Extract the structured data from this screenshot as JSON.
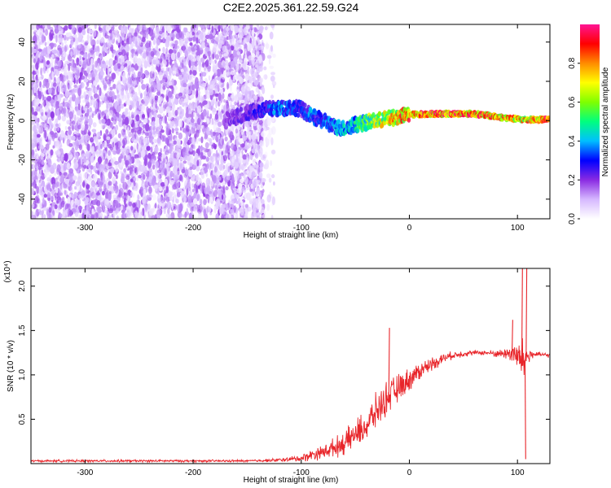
{
  "title": "C2E2.2025.361.22.59.G24",
  "colors": {
    "line": "#e8252a",
    "spec_base": "#7a1cf0",
    "frame": "#000000"
  },
  "chart_data": [
    {
      "type": "heatmap",
      "xlabel": "Height of straight line (km)",
      "ylabel": "Frequency (Hz)",
      "xlim": [
        -350,
        130
      ],
      "ylim": [
        -50,
        49
      ],
      "xticks": [
        -300,
        -200,
        -100,
        0,
        100
      ],
      "yticks": [
        -40,
        -20,
        0,
        20,
        40
      ],
      "grid": false,
      "colorbar": {
        "label": "Normalized spectral amplitude",
        "range": [
          0.0,
          1.0
        ],
        "ticks": [
          0.0,
          0.2,
          0.4,
          0.6,
          0.8
        ],
        "tick_labels": [
          "0.0",
          "0.2",
          "0.4",
          "0.6",
          "0.8"
        ],
        "colormap": [
          "#ffffff",
          "#d6b8ff",
          "#8a2be2",
          "#0000ff",
          "#00bfff",
          "#00ff7f",
          "#7fff00",
          "#ffff00",
          "#ff8c00",
          "#ff0000",
          "#ff1493"
        ]
      },
      "regions": [
        {
          "description": "noise",
          "x_range": [
            -350,
            -135
          ],
          "freq_range": [
            -50,
            49
          ],
          "amplitude": 0.1
        },
        {
          "description": "noise-fringe",
          "x_range": [
            -160,
            -125
          ],
          "freq_range": [
            -50,
            49
          ],
          "amplitude": 0.05
        }
      ],
      "ridge": {
        "x": [
          -170,
          -150,
          -130,
          -120,
          -110,
          -100,
          -90,
          -80,
          -70,
          -60,
          -50,
          -40,
          -30,
          -20,
          -10,
          0,
          20,
          40,
          60,
          80,
          95,
          105,
          115,
          130
        ],
        "freq": [
          0,
          4,
          6,
          6,
          7,
          6,
          2,
          0,
          -3,
          -4,
          -2,
          -1,
          0,
          1,
          2,
          3,
          3.5,
          3.5,
          3.5,
          2,
          1,
          0.5,
          0.5,
          0.5
        ],
        "amplitude": [
          0.2,
          0.25,
          0.35,
          0.4,
          0.35,
          0.3,
          0.4,
          0.35,
          0.4,
          0.45,
          0.5,
          0.6,
          0.7,
          0.75,
          0.85,
          0.9,
          0.95,
          0.95,
          0.95,
          0.9,
          0.85,
          0.8,
          0.9,
          0.95
        ]
      }
    },
    {
      "type": "line",
      "xlabel": "Height of straight line (km)",
      "ylabel": "SNR (10 * v/v)",
      "scale_label": "(x10⁴)",
      "xlim": [
        -350,
        130
      ],
      "ylim": [
        0,
        2.2
      ],
      "xticks": [
        -300,
        -200,
        -100,
        0,
        100
      ],
      "yticks": [
        0.5,
        1.0,
        1.5,
        2.0
      ],
      "ytick_labels": [
        "0.5",
        "1.0",
        "1.5",
        "2.0"
      ],
      "grid": false,
      "series": [
        {
          "x": [
            -350,
            -300,
            -250,
            -200,
            -150,
            -120,
            -100,
            -90,
            -80,
            -70,
            -60,
            -50,
            -40,
            -30,
            -20,
            -10,
            0,
            10,
            20,
            30,
            40,
            50,
            60,
            70,
            80,
            90,
            95,
            100,
            105,
            110,
            115,
            120,
            130
          ],
          "y": [
            0.03,
            0.03,
            0.03,
            0.03,
            0.03,
            0.04,
            0.06,
            0.1,
            0.13,
            0.18,
            0.23,
            0.33,
            0.42,
            0.6,
            0.75,
            0.85,
            0.95,
            1.05,
            1.12,
            1.18,
            1.22,
            1.24,
            1.25,
            1.25,
            1.24,
            1.24,
            1.25,
            1.2,
            1.15,
            1.22,
            1.23,
            1.23,
            1.22
          ],
          "spread": [
            0.01,
            0.01,
            0.01,
            0.01,
            0.01,
            0.015,
            0.03,
            0.05,
            0.06,
            0.08,
            0.1,
            0.12,
            0.14,
            0.15,
            0.14,
            0.12,
            0.1,
            0.08,
            0.06,
            0.05,
            0.03,
            0.03,
            0.02,
            0.02,
            0.03,
            0.05,
            0.1,
            0.15,
            0.2,
            0.1,
            0.03,
            0.02,
            0.02
          ]
        }
      ],
      "annotations": [
        {
          "x": -19,
          "y": 1.53,
          "kind": "spike"
        },
        {
          "x": 95,
          "y": 1.62,
          "kind": "spike"
        },
        {
          "x": 104,
          "y": 2.2,
          "kind": "spike"
        },
        {
          "x": 108,
          "y": 2.2,
          "kind": "spike"
        },
        {
          "x": 107,
          "y": 0.05,
          "kind": "dip"
        }
      ]
    }
  ]
}
